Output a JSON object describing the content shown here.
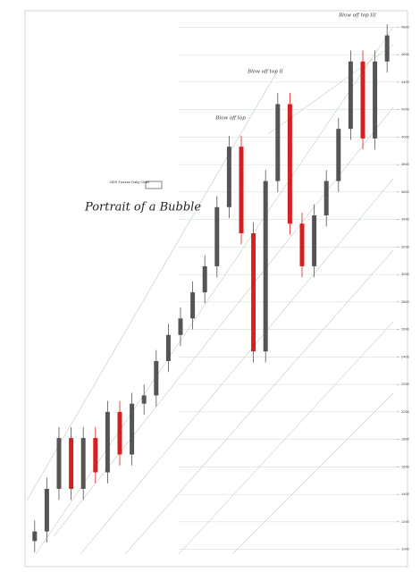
{
  "chart_data": {
    "type": "candlestick",
    "title": "Portrait of a Bubble",
    "subtitle": "NDX Futures Daily Chart",
    "annotations": [
      "Blow off top",
      "Blow off top II",
      "Blow off top III"
    ],
    "open": [
      1060,
      1130,
      1440,
      1810,
      1440,
      1810,
      1560,
      2000,
      1690,
      2060,
      2120,
      2370,
      2560,
      2680,
      2870,
      3060,
      3490,
      3930,
      3300,
      2440,
      3680,
      4240,
      3370,
      3060,
      3430,
      3680,
      4060,
      4550,
      3990,
      4550
    ],
    "high": [
      1210,
      1520,
      1890,
      1890,
      1890,
      1890,
      2080,
      2080,
      2140,
      2200,
      2450,
      2640,
      2760,
      2950,
      3140,
      3570,
      4010,
      4010,
      3380,
      3760,
      4320,
      4320,
      3450,
      3510,
      3760,
      4140,
      4630,
      4630,
      4630,
      4820
    ],
    "low": [
      980,
      1050,
      1360,
      1360,
      1360,
      1480,
      1480,
      1610,
      1610,
      1980,
      2040,
      2290,
      2480,
      2600,
      2790,
      2980,
      3410,
      3220,
      2360,
      2360,
      3600,
      3290,
      2980,
      2980,
      3350,
      3600,
      3980,
      3910,
      3910,
      4470
    ],
    "close": [
      1130,
      1440,
      1810,
      1440,
      1810,
      1560,
      2000,
      1690,
      2060,
      2120,
      2370,
      2560,
      2680,
      2870,
      3060,
      3490,
      3930,
      3300,
      2440,
      3680,
      4240,
      3370,
      3060,
      3430,
      3680,
      4060,
      4550,
      3990,
      4550,
      4740
    ],
    "up_color": "#555555",
    "down_color": "#d42020",
    "ylim": [
      900,
      4900
    ],
    "yticks": [
      1000,
      1200,
      1400,
      1600,
      1800,
      2000,
      2200,
      2400,
      2600,
      2800,
      3000,
      3200,
      3400,
      3600,
      3800,
      4000,
      4200,
      4400,
      4600,
      4800
    ],
    "grid": true
  }
}
